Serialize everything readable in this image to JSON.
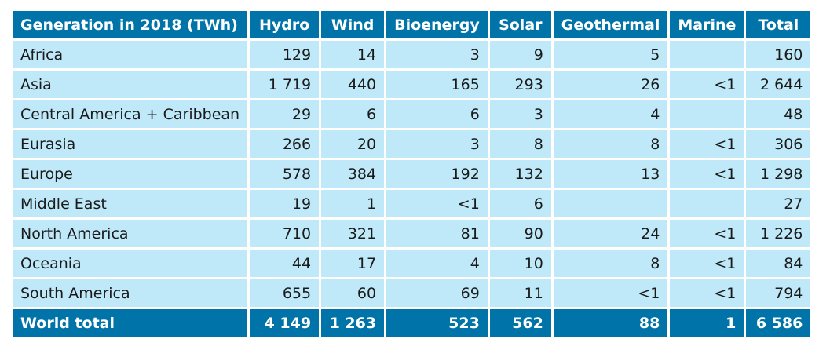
{
  "table": {
    "headers": [
      "Generation in 2018 (TWh)",
      "Hydro",
      "Wind",
      "Bioenergy",
      "Solar",
      "Geothermal",
      "Marine",
      "Total"
    ],
    "rows": [
      [
        "Africa",
        "129",
        "14",
        "3",
        "9",
        "5",
        "",
        "160"
      ],
      [
        "Asia",
        "1 719",
        "440",
        "165",
        "293",
        "26",
        "<1",
        "2 644"
      ],
      [
        "Central America + Caribbean",
        "29",
        "6",
        "6",
        "3",
        "4",
        "",
        "48"
      ],
      [
        "Eurasia",
        "266",
        "20",
        "3",
        "8",
        "8",
        "<1",
        "306"
      ],
      [
        "Europe",
        "578",
        "384",
        "192",
        "132",
        "13",
        "<1",
        "1 298"
      ],
      [
        "Middle East",
        "19",
        "1",
        "<1",
        "6",
        "",
        "",
        "27"
      ],
      [
        "North America",
        "710",
        "321",
        "81",
        "90",
        "24",
        "<1",
        "1 226"
      ],
      [
        "Oceania",
        "44",
        "17",
        "4",
        "10",
        "8",
        "<1",
        "84"
      ],
      [
        "South America",
        "655",
        "60",
        "69",
        "11",
        "<1",
        "<1",
        "794"
      ]
    ],
    "footer": [
      "World total",
      "4 149",
      "1 263",
      "523",
      "562",
      "88",
      "1",
      "6 586"
    ]
  }
}
